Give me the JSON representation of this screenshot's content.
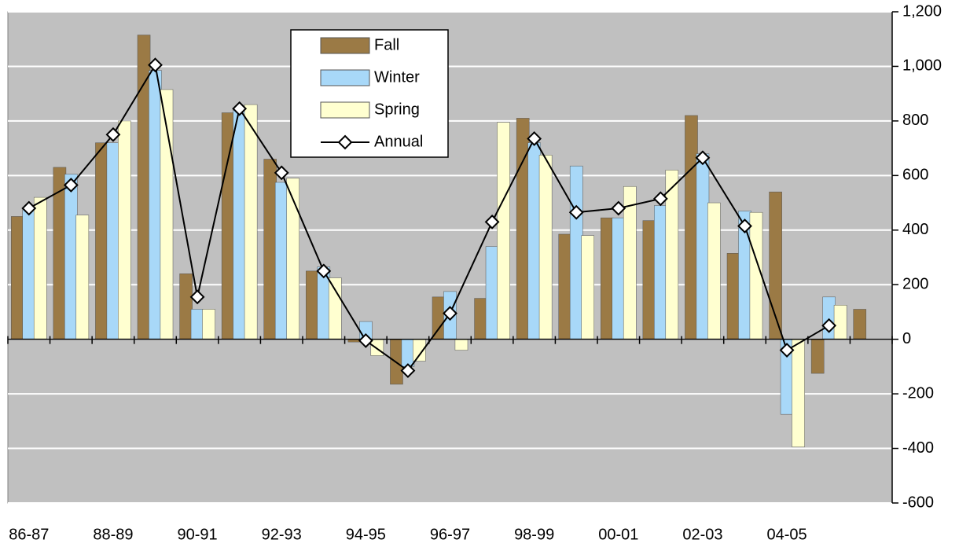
{
  "chart_data": {
    "type": "bar_line",
    "categories": [
      "86-87",
      null,
      "88-89",
      null,
      "90-91",
      null,
      "92-93",
      null,
      "94-95",
      null,
      "96-97",
      null,
      "98-99",
      null,
      "00-01",
      null,
      "02-03",
      null,
      "04-05",
      null,
      null
    ],
    "series": [
      {
        "name": "Fall",
        "color": "#9b7a45",
        "type": "bar",
        "values": [
          450,
          630,
          720,
          1115,
          240,
          830,
          660,
          250,
          -10,
          -165,
          155,
          150,
          810,
          385,
          445,
          435,
          820,
          315,
          540,
          -125,
          110
        ]
      },
      {
        "name": "Winter",
        "color": "#a8d8f8",
        "type": "bar",
        "values": [
          480,
          605,
          720,
          985,
          110,
          840,
          575,
          265,
          65,
          -100,
          175,
          340,
          720,
          635,
          445,
          490,
          680,
          470,
          -275,
          155,
          null
        ]
      },
      {
        "name": "Spring",
        "color": "#ffffd0",
        "type": "bar",
        "values": [
          520,
          455,
          800,
          915,
          110,
          860,
          590,
          225,
          -60,
          -80,
          -40,
          795,
          675,
          380,
          560,
          620,
          500,
          465,
          -395,
          125,
          null
        ]
      },
      {
        "name": "Annual",
        "color": "#000000",
        "type": "line",
        "values": [
          480,
          565,
          750,
          1005,
          155,
          845,
          610,
          250,
          -5,
          -115,
          95,
          430,
          735,
          465,
          480,
          515,
          665,
          415,
          -40,
          50,
          null
        ]
      }
    ],
    "ylim": [
      -600,
      1200
    ],
    "yticks": [
      {
        "value": 1200,
        "label": "1,200"
      },
      {
        "value": 1000,
        "label": "1,000"
      },
      800,
      600,
      400,
      200,
      0,
      -200,
      -400,
      -600
    ],
    "grid": true,
    "legend": "top-center",
    "plot_background": "#c0c0c0"
  }
}
